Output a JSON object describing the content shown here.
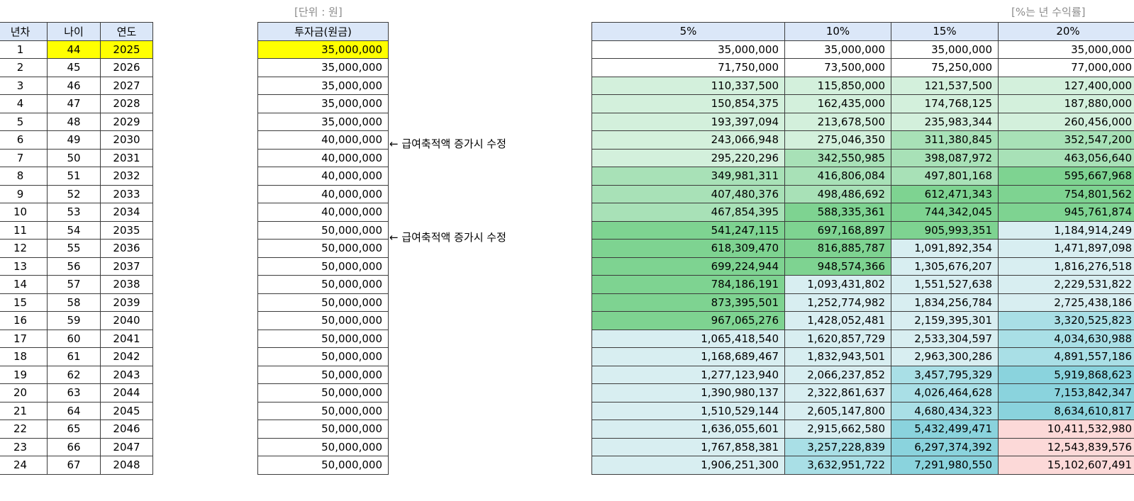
{
  "notes": {
    "unit": "[단위 : 원]",
    "rate_note": "[%는 년 수익률]",
    "memo": "← 급여축적액 증가시 수정"
  },
  "left_table": {
    "headers": [
      "년차",
      "나이",
      "연도"
    ],
    "rows": [
      [
        "1",
        "44",
        "2025"
      ],
      [
        "2",
        "45",
        "2026"
      ],
      [
        "3",
        "46",
        "2027"
      ],
      [
        "4",
        "47",
        "2028"
      ],
      [
        "5",
        "48",
        "2029"
      ],
      [
        "6",
        "49",
        "2030"
      ],
      [
        "7",
        "50",
        "2031"
      ],
      [
        "8",
        "51",
        "2032"
      ],
      [
        "9",
        "52",
        "2033"
      ],
      [
        "10",
        "53",
        "2034"
      ],
      [
        "11",
        "54",
        "2035"
      ],
      [
        "12",
        "55",
        "2036"
      ],
      [
        "13",
        "56",
        "2037"
      ],
      [
        "14",
        "57",
        "2038"
      ],
      [
        "15",
        "58",
        "2039"
      ],
      [
        "16",
        "59",
        "2040"
      ],
      [
        "17",
        "60",
        "2041"
      ],
      [
        "18",
        "61",
        "2042"
      ],
      [
        "19",
        "62",
        "2043"
      ],
      [
        "20",
        "63",
        "2044"
      ],
      [
        "21",
        "64",
        "2045"
      ],
      [
        "22",
        "65",
        "2046"
      ],
      [
        "23",
        "66",
        "2047"
      ],
      [
        "24",
        "67",
        "2048"
      ]
    ]
  },
  "invest_table": {
    "header": "투자금(원금)",
    "values": [
      "35,000,000",
      "35,000,000",
      "35,000,000",
      "35,000,000",
      "35,000,000",
      "40,000,000",
      "40,000,000",
      "40,000,000",
      "40,000,000",
      "40,000,000",
      "50,000,000",
      "50,000,000",
      "50,000,000",
      "50,000,000",
      "50,000,000",
      "50,000,000",
      "50,000,000",
      "50,000,000",
      "50,000,000",
      "50,000,000",
      "50,000,000",
      "50,000,000",
      "50,000,000",
      "50,000,000"
    ]
  },
  "return_table": {
    "headers": [
      "5%",
      "10%",
      "15%",
      "20%"
    ],
    "rows": [
      [
        "35,000,000",
        "35,000,000",
        "35,000,000",
        "35,000,000"
      ],
      [
        "71,750,000",
        "73,500,000",
        "75,250,000",
        "77,000,000"
      ],
      [
        "110,337,500",
        "115,850,000",
        "121,537,500",
        "127,400,000"
      ],
      [
        "150,854,375",
        "162,435,000",
        "174,768,125",
        "187,880,000"
      ],
      [
        "193,397,094",
        "213,678,500",
        "235,983,344",
        "260,456,000"
      ],
      [
        "243,066,948",
        "275,046,350",
        "311,380,845",
        "352,547,200"
      ],
      [
        "295,220,296",
        "342,550,985",
        "398,087,972",
        "463,056,640"
      ],
      [
        "349,981,311",
        "416,806,084",
        "497,801,168",
        "595,667,968"
      ],
      [
        "407,480,376",
        "498,486,692",
        "612,471,343",
        "754,801,562"
      ],
      [
        "467,854,395",
        "588,335,361",
        "744,342,045",
        "945,761,874"
      ],
      [
        "541,247,115",
        "697,168,897",
        "905,993,351",
        "1,184,914,249"
      ],
      [
        "618,309,470",
        "816,885,787",
        "1,091,892,354",
        "1,471,897,098"
      ],
      [
        "699,224,944",
        "948,574,366",
        "1,305,676,207",
        "1,816,276,518"
      ],
      [
        "784,186,191",
        "1,093,431,802",
        "1,551,527,638",
        "2,229,531,822"
      ],
      [
        "873,395,501",
        "1,252,774,982",
        "1,834,256,784",
        "2,725,438,186"
      ],
      [
        "967,065,276",
        "1,428,052,481",
        "2,159,395,301",
        "3,320,525,823"
      ],
      [
        "1,065,418,540",
        "1,620,857,729",
        "2,533,304,597",
        "4,034,630,988"
      ],
      [
        "1,168,689,467",
        "1,832,943,501",
        "2,963,300,286",
        "4,891,557,186"
      ],
      [
        "1,277,123,940",
        "2,066,237,852",
        "3,457,795,329",
        "5,919,868,623"
      ],
      [
        "1,390,980,137",
        "2,322,861,637",
        "4,026,464,628",
        "7,153,842,347"
      ],
      [
        "1,510,529,144",
        "2,605,147,800",
        "4,680,434,323",
        "8,634,610,817"
      ],
      [
        "1,636,055,601",
        "2,915,662,580",
        "5,432,499,471",
        "10,411,532,980"
      ],
      [
        "1,767,858,381",
        "3,257,228,839",
        "6,297,374,392",
        "12,543,839,576"
      ],
      [
        "1,906,251,300",
        "3,632,951,722",
        "7,291,980,550",
        "15,102,607,491"
      ]
    ],
    "cell_colors": [
      [
        "w",
        "w",
        "w",
        "w"
      ],
      [
        "w",
        "w",
        "w",
        "w"
      ],
      [
        "g1",
        "g1",
        "g1",
        "g1"
      ],
      [
        "g1",
        "g1",
        "g1",
        "g1"
      ],
      [
        "g1",
        "g1",
        "g1",
        "g1"
      ],
      [
        "g1",
        "g1",
        "g2",
        "g2"
      ],
      [
        "g1",
        "g2",
        "g2",
        "g2"
      ],
      [
        "g2",
        "g2",
        "g2",
        "g3"
      ],
      [
        "g2",
        "g2",
        "g3",
        "g3"
      ],
      [
        "g2",
        "g3",
        "g3",
        "g3"
      ],
      [
        "g3",
        "g3",
        "g3",
        "b1"
      ],
      [
        "g3",
        "g3",
        "b1",
        "b1"
      ],
      [
        "g3",
        "g3",
        "b1",
        "b1"
      ],
      [
        "g3",
        "b1",
        "b1",
        "b1"
      ],
      [
        "g3",
        "b1",
        "b1",
        "b1"
      ],
      [
        "g3",
        "b1",
        "b1",
        "b2"
      ],
      [
        "b1",
        "b1",
        "b1",
        "b2"
      ],
      [
        "b1",
        "b1",
        "b1",
        "b2"
      ],
      [
        "b1",
        "b1",
        "b2",
        "b3"
      ],
      [
        "b1",
        "b1",
        "b2",
        "b3"
      ],
      [
        "b1",
        "b1",
        "b2",
        "b3"
      ],
      [
        "b1",
        "b1",
        "b3",
        "p1"
      ],
      [
        "b1",
        "b2",
        "b3",
        "p1"
      ],
      [
        "b1",
        "b2",
        "b3",
        "p1"
      ]
    ],
    "palette": {
      "w": "#ffffff",
      "g1": "#d3f0dc",
      "g2": "#a8e1b7",
      "g3": "#7ed391",
      "b1": "#d8eef1",
      "b2": "#a9dfe6",
      "b3": "#8ad3dd",
      "p1": "#fcd9d8",
      "highlight": "#ffff00",
      "header": "#dbe7f8"
    }
  }
}
